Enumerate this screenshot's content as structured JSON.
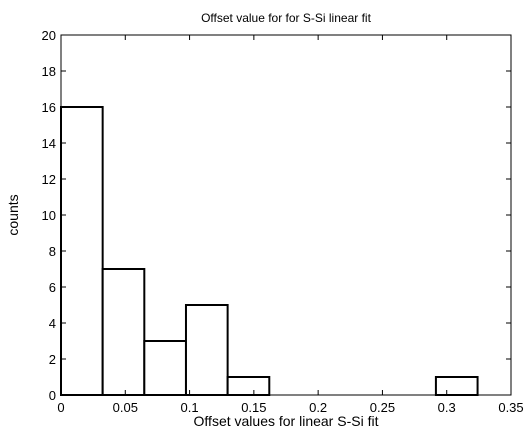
{
  "chart_data": {
    "type": "bar",
    "title": "Offset value for for S-Si linear fit",
    "xlabel": "Offset values for linear S-Si fit",
    "ylabel": "counts",
    "xlim": [
      0,
      0.35
    ],
    "ylim": [
      0,
      20
    ],
    "xticks": [
      "0",
      "0.05",
      "0.1",
      "0.15",
      "0.2",
      "0.25",
      "0.3",
      "0.35"
    ],
    "yticks": [
      "0",
      "2",
      "4",
      "6",
      "8",
      "10",
      "12",
      "14",
      "16",
      "18",
      "20"
    ],
    "grid": false,
    "bin_edges": [
      0.0,
      0.0324,
      0.0648,
      0.0972,
      0.1296,
      0.162,
      0.1944,
      0.2268,
      0.2592,
      0.2916,
      0.324
    ],
    "counts": [
      16,
      7,
      3,
      5,
      1,
      0,
      0,
      0,
      0,
      1
    ],
    "bar_fill": "#ffffff",
    "bar_stroke": "#000000"
  }
}
